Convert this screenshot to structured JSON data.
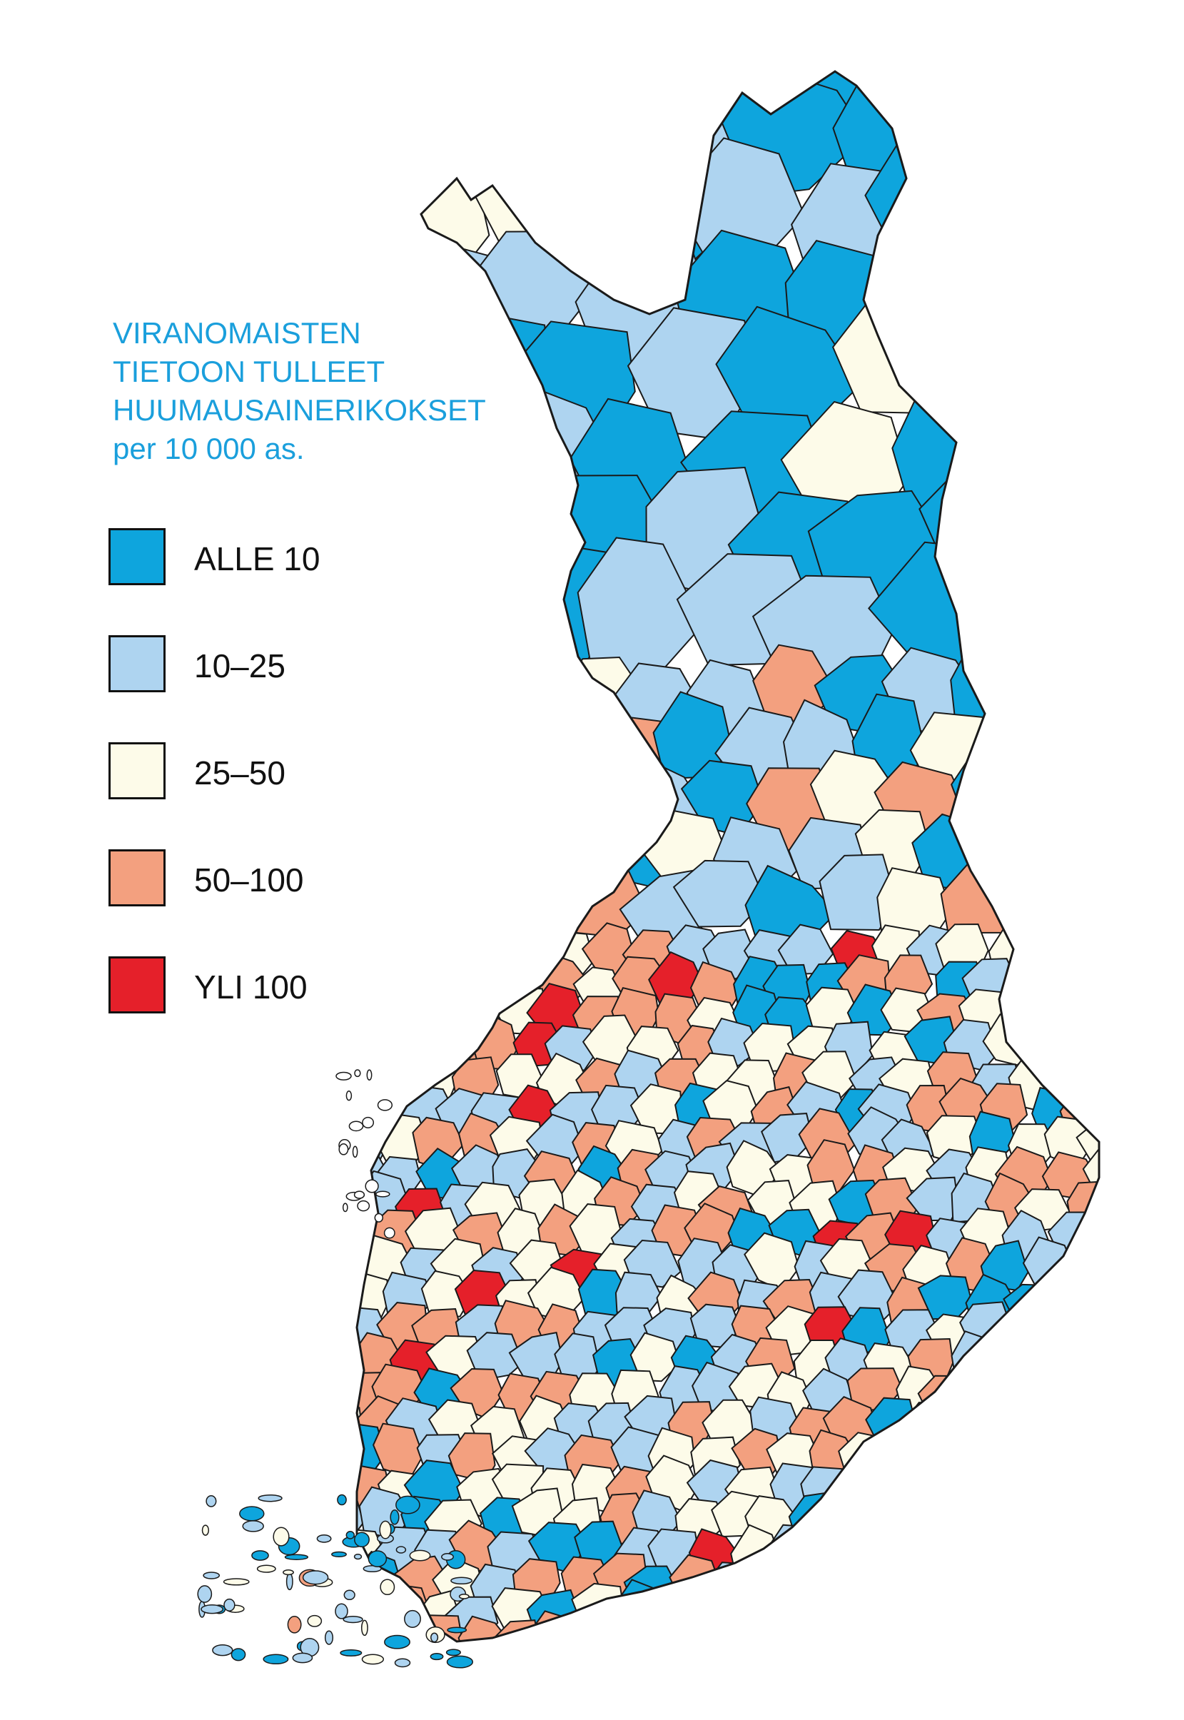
{
  "title": {
    "lines": [
      "VIRANOMAISTEN",
      "TIETOON TULLEET",
      "HUUMAUSAINERIKOKSET",
      "per 10 000 as."
    ],
    "color": "#1a9fdc"
  },
  "legend": [
    {
      "label": "ALLE 10",
      "color": "#0ea5dd"
    },
    {
      "label": "10–25",
      "color": "#aed4f0"
    },
    {
      "label": "25–50",
      "color": "#fdfbe9"
    },
    {
      "label": "50–100",
      "color": "#f3a07f"
    },
    {
      "label": "YLI 100",
      "color": "#e5202a"
    }
  ],
  "map": {
    "region": "Finland",
    "unit_level": "municipalities",
    "border_color": "#1a1a1a"
  }
}
